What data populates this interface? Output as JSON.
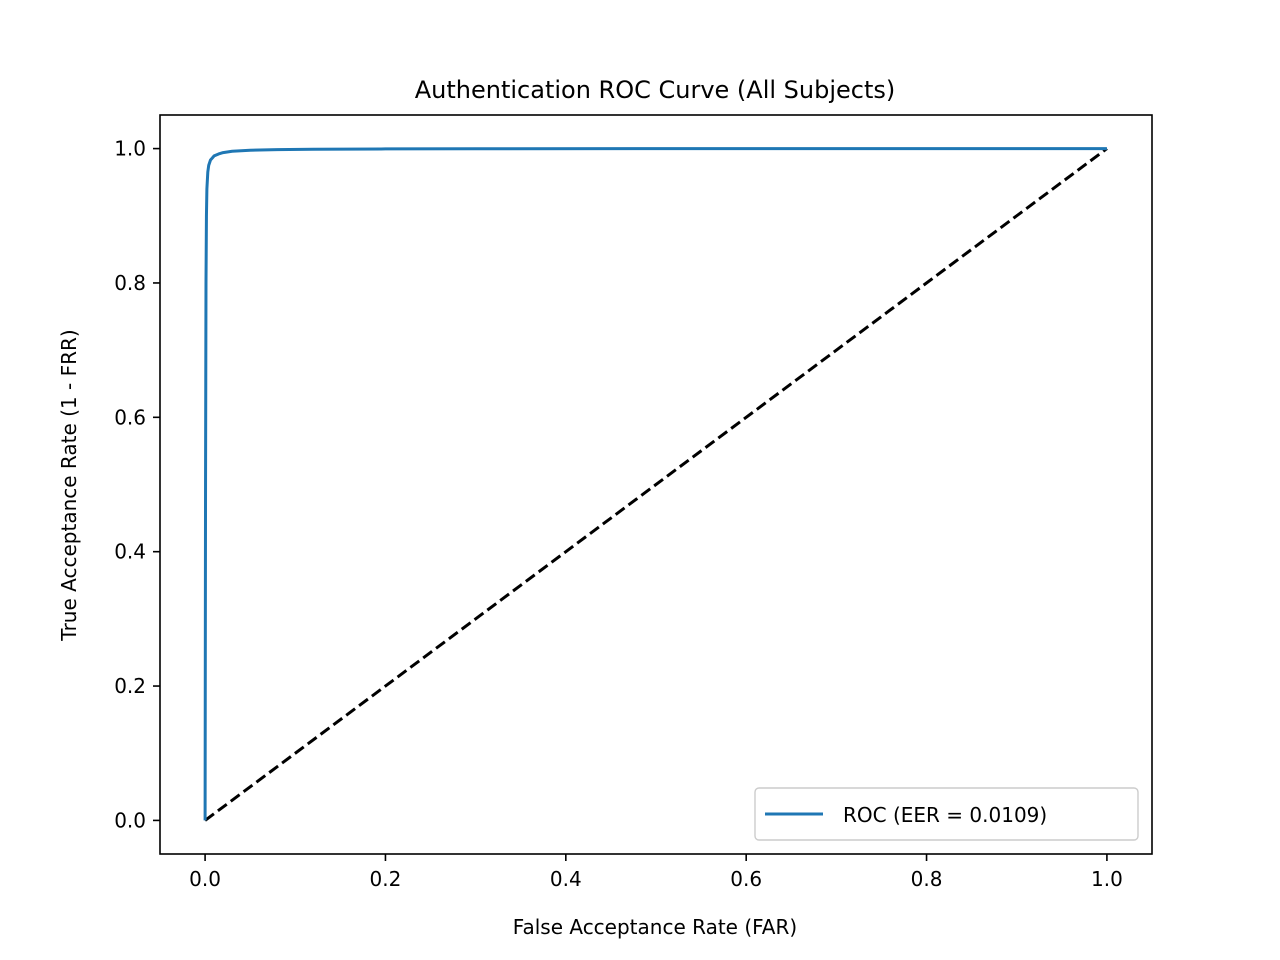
{
  "chart_data": {
    "type": "line",
    "title": "Authentication ROC Curve (All Subjects)",
    "xlabel": "False Acceptance Rate (FAR)",
    "ylabel": "True Acceptance Rate (1 - FRR)",
    "xlim": [
      -0.05,
      1.05
    ],
    "ylim": [
      -0.05,
      1.05
    ],
    "xticks": [
      0.0,
      0.2,
      0.4,
      0.6,
      0.8,
      1.0
    ],
    "yticks": [
      0.0,
      0.2,
      0.4,
      0.6,
      0.8,
      1.0
    ],
    "xtick_labels": [
      "0.0",
      "0.2",
      "0.4",
      "0.6",
      "0.8",
      "1.0"
    ],
    "ytick_labels": [
      "0.0",
      "0.2",
      "0.4",
      "0.6",
      "0.8",
      "1.0"
    ],
    "grid": false,
    "legend_position": "lower-right",
    "series": [
      {
        "name": "ROC (EER = 0.0109)",
        "color": "#1f77b4",
        "style": "solid",
        "x": [
          0.0,
          0.0005,
          0.001,
          0.0015,
          0.002,
          0.003,
          0.004,
          0.006,
          0.008,
          0.01,
          0.015,
          0.02,
          0.03,
          0.05,
          0.08,
          0.12,
          0.2,
          0.3,
          0.5,
          0.7,
          1.0
        ],
        "y": [
          0.0,
          0.5,
          0.8,
          0.9,
          0.94,
          0.965,
          0.975,
          0.983,
          0.986,
          0.9891,
          0.992,
          0.994,
          0.996,
          0.9975,
          0.9985,
          0.999,
          0.9995,
          0.9997,
          0.9999,
          1.0,
          1.0
        ]
      },
      {
        "name": "",
        "color": "#000000",
        "style": "dashed",
        "x": [
          0.0,
          1.0
        ],
        "y": [
          0.0,
          1.0
        ]
      }
    ]
  }
}
